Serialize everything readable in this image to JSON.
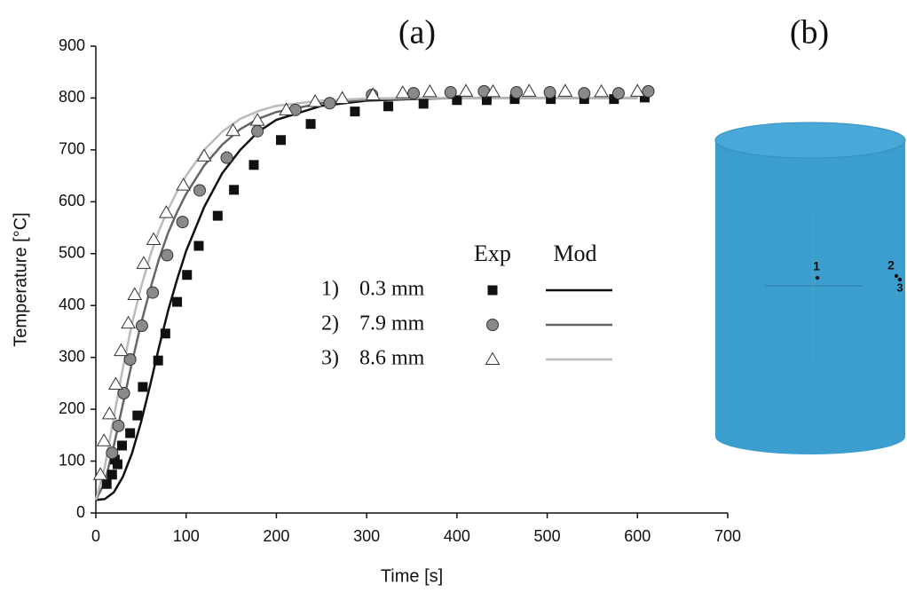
{
  "chart_data": {
    "type": "scatter-line",
    "title": "(a)",
    "x_label": "Time [s]",
    "y_label": "Temperature [°C]",
    "xlim": [
      0,
      700
    ],
    "xticks": [
      0,
      100,
      200,
      300,
      400,
      500,
      600,
      700
    ],
    "ylim": [
      0,
      900
    ],
    "yticks": [
      0,
      100,
      200,
      300,
      400,
      500,
      600,
      700,
      800,
      900
    ],
    "legend_headers": [
      "Exp",
      "Mod"
    ],
    "series": [
      {
        "name": "1)",
        "detail": "0.3 mm",
        "color": "#111111",
        "marker": "square",
        "marker_color": "#111111",
        "x": [
          12,
          18,
          21,
          24,
          29,
          38,
          46,
          52,
          69,
          77,
          90,
          101,
          114,
          135,
          153,
          175,
          205,
          238,
          287,
          324,
          363,
          400,
          433,
          464,
          504,
          541,
          574,
          608
        ],
        "values": [
          56,
          74,
          103,
          94,
          130,
          154,
          188,
          243,
          294,
          346,
          407,
          459,
          515,
          573,
          623,
          671,
          719,
          750,
          774,
          784,
          789,
          796,
          796,
          798,
          798,
          798,
          798,
          801
        ],
        "model_x": [
          0,
          10,
          20,
          30,
          40,
          50,
          60,
          70,
          80,
          90,
          100,
          120,
          140,
          160,
          180,
          200,
          250,
          300,
          350,
          400,
          500,
          600
        ],
        "model_values": [
          25,
          27,
          40,
          70,
          115,
          175,
          245,
          320,
          390,
          450,
          505,
          590,
          655,
          700,
          735,
          758,
          785,
          795,
          798,
          800,
          800,
          800
        ]
      },
      {
        "name": "2)",
        "detail": "7.9 mm",
        "color": "#666666",
        "marker": "circle",
        "marker_color": "#8a8a8a",
        "x": [
          18,
          25,
          31,
          38,
          51,
          63,
          79,
          96,
          115,
          145,
          179,
          221,
          259,
          306,
          352,
          393,
          430,
          466,
          503,
          541,
          579,
          612
        ],
        "values": [
          116,
          168,
          231,
          296,
          361,
          425,
          497,
          561,
          622,
          685,
          736,
          777,
          790,
          806,
          809,
          811,
          813,
          811,
          811,
          809,
          809,
          813
        ],
        "model_x": [
          0,
          10,
          20,
          30,
          40,
          50,
          60,
          70,
          80,
          90,
          100,
          120,
          140,
          160,
          180,
          200,
          250,
          300,
          350,
          400,
          500,
          600
        ],
        "model_values": [
          25,
          60,
          130,
          210,
          290,
          365,
          430,
          490,
          540,
          580,
          615,
          670,
          710,
          740,
          760,
          773,
          790,
          797,
          799,
          800,
          800,
          800
        ]
      },
      {
        "name": "3)",
        "detail": "8.6 mm",
        "color": "#bbbbbb",
        "marker": "triangle",
        "marker_color": "#ffffff",
        "x": [
          5,
          9,
          15,
          22,
          28,
          36,
          43,
          53,
          64,
          78,
          97,
          120,
          152,
          179,
          211,
          243,
          273,
          307,
          340,
          370,
          410,
          440,
          480,
          520,
          560,
          600
        ],
        "values": [
          74,
          139,
          191,
          248,
          313,
          366,
          421,
          481,
          527,
          579,
          632,
          688,
          737,
          757,
          777,
          793,
          799,
          806,
          810,
          812,
          813,
          812,
          813,
          813,
          812,
          813
        ],
        "model_x": [
          0,
          10,
          20,
          30,
          40,
          50,
          60,
          70,
          80,
          90,
          100,
          120,
          140,
          160,
          180,
          200,
          250,
          300,
          350,
          400,
          500,
          600
        ],
        "model_values": [
          25,
          90,
          185,
          280,
          365,
          435,
          495,
          545,
          585,
          620,
          650,
          700,
          735,
          760,
          775,
          785,
          795,
          799,
          800,
          800,
          800,
          800
        ]
      }
    ]
  },
  "diagram": {
    "title": "(b)",
    "points": [
      "1",
      "2",
      "3"
    ]
  }
}
